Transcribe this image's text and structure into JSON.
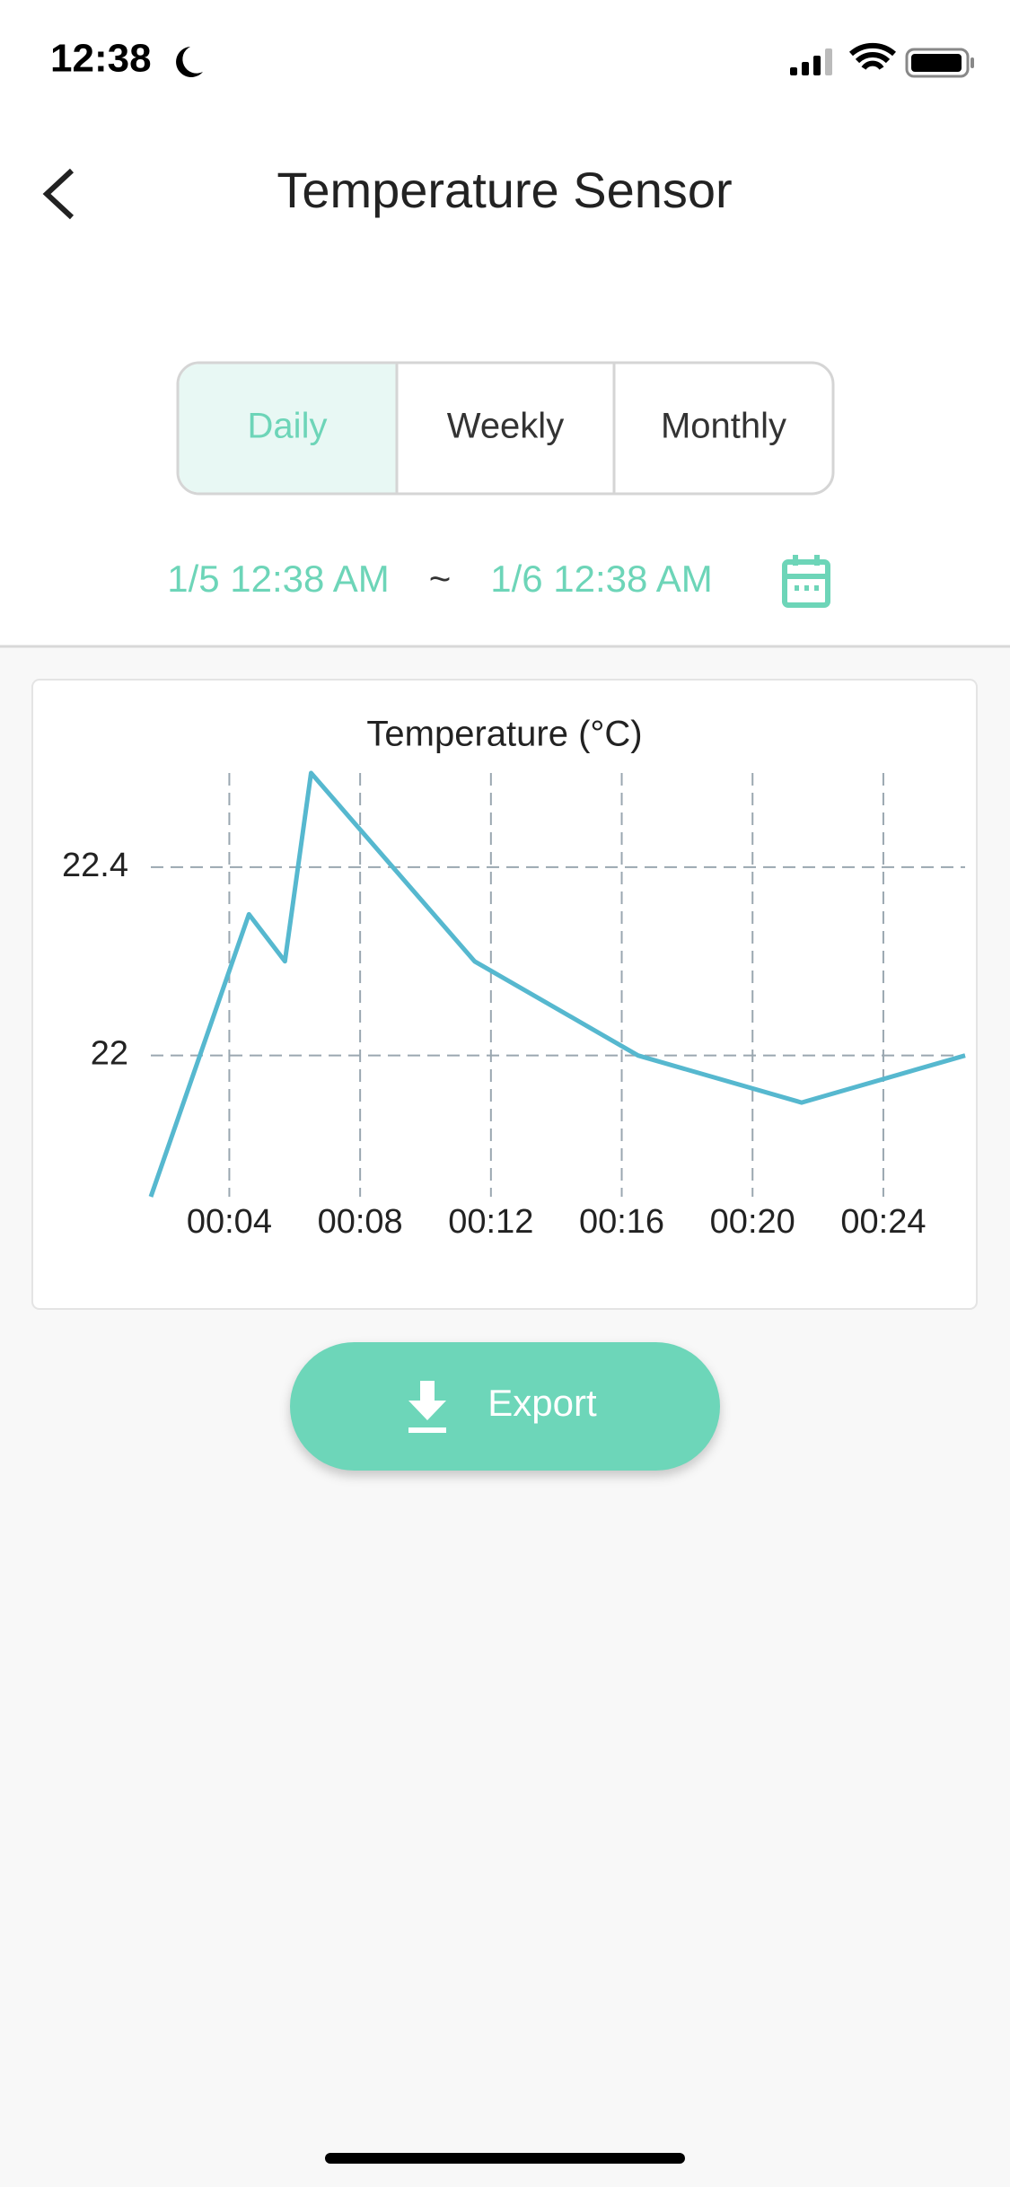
{
  "status_bar": {
    "time": "12:38"
  },
  "header": {
    "title": "Temperature Sensor"
  },
  "tabs": [
    "Daily",
    "Weekly",
    "Monthly"
  ],
  "date_range": {
    "start": "1/5 12:38 AM",
    "separator": "~",
    "end": "1/6 12:38 AM"
  },
  "chart_data": {
    "type": "line",
    "title": "Temperature (°C)",
    "x": [
      1.6,
      4.6,
      5.7,
      6.5,
      11.5,
      16.5,
      21.5,
      26.5
    ],
    "values": [
      21.7,
      22.3,
      22.2,
      22.6,
      22.2,
      22.0,
      21.9,
      22.0
    ],
    "color": "#56b8cf",
    "xlim": [
      1.6,
      26.5
    ],
    "xticks": [
      {
        "value": 4,
        "label": "00:04"
      },
      {
        "value": 8,
        "label": "00:08"
      },
      {
        "value": 12,
        "label": "00:12"
      },
      {
        "value": 16,
        "label": "00:16"
      },
      {
        "value": 20,
        "label": "00:20"
      },
      {
        "value": 24,
        "label": "00:24"
      }
    ],
    "ylim": [
      21.7,
      22.6
    ],
    "yticks": [
      22,
      22.4
    ],
    "grid": true
  },
  "export_button": {
    "label": "Export"
  }
}
